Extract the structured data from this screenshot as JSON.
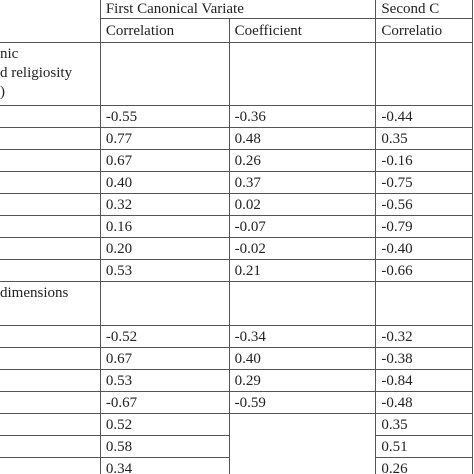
{
  "table": {
    "header": {
      "group_1": "First Canonical Variate",
      "group_2": "Second C",
      "columns": [
        "Correlation",
        "Coefficient",
        "Correlatio"
      ]
    },
    "sections": [
      {
        "label_lines": [
          "nic",
          "d religiosity",
          ")"
        ],
        "rows": [
          [
            "-0.55",
            "-0.36",
            "-0.44"
          ],
          [
            "0.77",
            "0.48",
            "0.35"
          ],
          [
            "0.67",
            "0.26",
            "-0.16"
          ],
          [
            "0.40",
            "0.37",
            "-0.75"
          ],
          [
            "0.32",
            "0.02",
            "-0.56"
          ],
          [
            "0.16",
            "-0.07",
            "-0.79"
          ],
          [
            "0.20",
            "-0.02",
            "-0.40"
          ],
          [
            "0.53",
            "0.21",
            "-0.66"
          ]
        ]
      },
      {
        "label_lines": [
          "dimensions"
        ],
        "rows": [
          [
            "-0.52",
            "-0.34",
            "-0.32"
          ],
          [
            "0.67",
            "0.40",
            "-0.38"
          ],
          [
            "0.53",
            "0.29",
            "-0.84"
          ],
          [
            "-0.67",
            "-0.59",
            "-0.48"
          ],
          [
            "0.52",
            null,
            "0.35"
          ],
          [
            "0.58",
            null,
            "0.51"
          ],
          [
            "0.34",
            null,
            "0.26"
          ]
        ]
      }
    ]
  }
}
